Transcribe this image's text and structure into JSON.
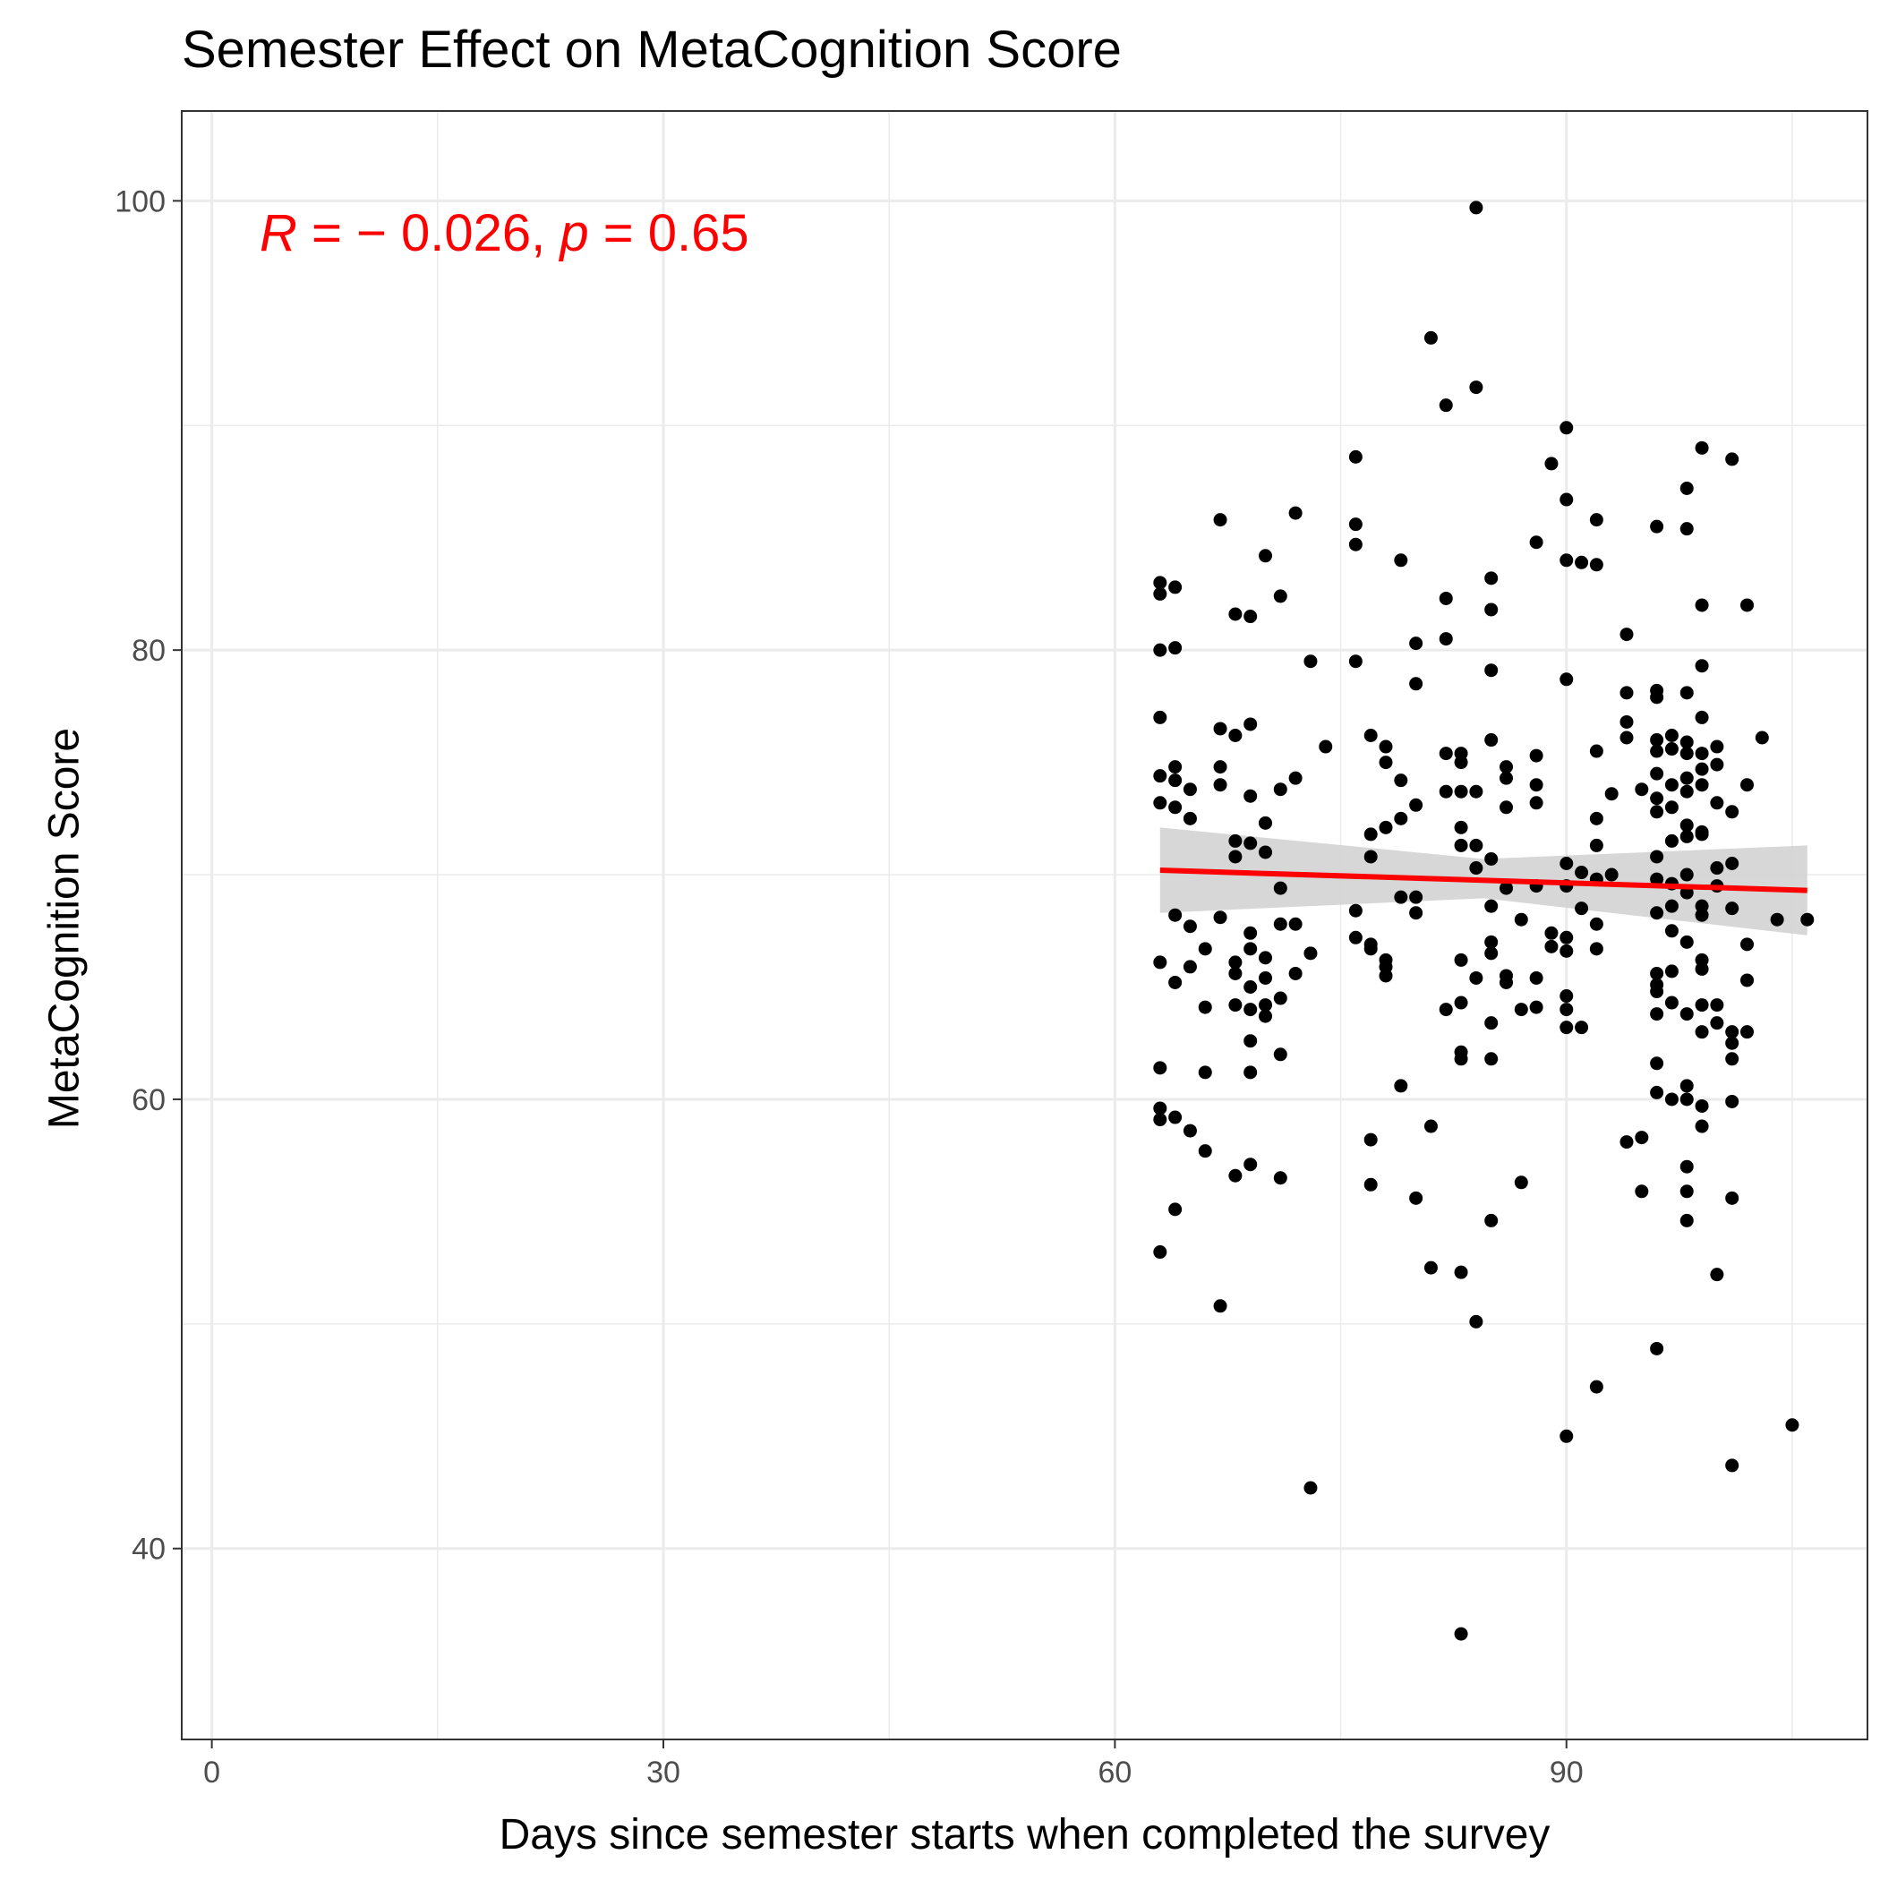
{
  "chart_data": {
    "type": "scatter",
    "title": "Semester Effect on MetaCognition Score",
    "xlabel": "Days since semester starts when completed the survey",
    "ylabel": "MetaCognition Score",
    "xlim": [
      -2,
      110
    ],
    "ylim": [
      31.5,
      104
    ],
    "x_ticks": [
      0,
      30,
      60,
      90
    ],
    "y_ticks": [
      40,
      60,
      80,
      100
    ],
    "x_tick_labels": [
      "0",
      "30",
      "60",
      "90"
    ],
    "y_tick_labels": [
      "40",
      "60",
      "80",
      "100"
    ],
    "grid": true,
    "annotation": {
      "r_symbol": "R",
      "r_text": " = − 0.026, ",
      "p_symbol": "p",
      "p_text": " = 0.65",
      "color": "#ff0000"
    },
    "regression": {
      "x": [
        63,
        106
      ],
      "y": [
        70.2,
        69.3
      ],
      "ci_upper": [
        72.1,
        71.3
      ],
      "ci_mid_upper": [
        70.6,
        70.8
      ],
      "ci_mid_lower": [
        69.1,
        68.8
      ],
      "ci_lower": [
        68.3,
        67.3
      ],
      "color": "#ff0000",
      "band_color": "#d3d3d3"
    },
    "points": [
      [
        63,
        83
      ],
      [
        63,
        82.5
      ],
      [
        64,
        82.8
      ],
      [
        63,
        80
      ],
      [
        64,
        80.1
      ],
      [
        63,
        77
      ],
      [
        63,
        74.4
      ],
      [
        64,
        74.8
      ],
      [
        64,
        74.2
      ],
      [
        65,
        73.8
      ],
      [
        63,
        73.2
      ],
      [
        64,
        73
      ],
      [
        65,
        72.5
      ],
      [
        64,
        68.2
      ],
      [
        65,
        67.7
      ],
      [
        63,
        66.1
      ],
      [
        65,
        65.9
      ],
      [
        66,
        66.7
      ],
      [
        64,
        65.2
      ],
      [
        66,
        64.1
      ],
      [
        63,
        61.4
      ],
      [
        66,
        61.2
      ],
      [
        63,
        59.6
      ],
      [
        63,
        59.1
      ],
      [
        64,
        59.2
      ],
      [
        65,
        58.6
      ],
      [
        66,
        57.7
      ],
      [
        64,
        55.1
      ],
      [
        63,
        53.2
      ],
      [
        67,
        85.8
      ],
      [
        68,
        81.6
      ],
      [
        69,
        81.5
      ],
      [
        67,
        76.5
      ],
      [
        68,
        76.2
      ],
      [
        69,
        76.7
      ],
      [
        67,
        74.8
      ],
      [
        67,
        74
      ],
      [
        69,
        73.5
      ],
      [
        68,
        71.5
      ],
      [
        69,
        71.4
      ],
      [
        68,
        70.8
      ],
      [
        70,
        71
      ],
      [
        70,
        72.3
      ],
      [
        67,
        68.1
      ],
      [
        69,
        67.4
      ],
      [
        69,
        66.7
      ],
      [
        68,
        66.1
      ],
      [
        68,
        65.6
      ],
      [
        70,
        66.3
      ],
      [
        69,
        65
      ],
      [
        70,
        65.4
      ],
      [
        68,
        64.2
      ],
      [
        70,
        64.2
      ],
      [
        69,
        64
      ],
      [
        70,
        63.7
      ],
      [
        69,
        62.6
      ],
      [
        69,
        61.2
      ],
      [
        69,
        57.1
      ],
      [
        68,
        56.6
      ],
      [
        67,
        50.8
      ],
      [
        70,
        84.2
      ],
      [
        71,
        82.4
      ],
      [
        72,
        86.1
      ],
      [
        71,
        73.8
      ],
      [
        72,
        74.3
      ],
      [
        71,
        69.4
      ],
      [
        71,
        67.8
      ],
      [
        72,
        67.8
      ],
      [
        73,
        66.5
      ],
      [
        72,
        65.6
      ],
      [
        71,
        64.5
      ],
      [
        71,
        62
      ],
      [
        71,
        56.5
      ],
      [
        74,
        75.7
      ],
      [
        73,
        79.5
      ],
      [
        73,
        42.7
      ],
      [
        76,
        88.6
      ],
      [
        76,
        85.6
      ],
      [
        76,
        84.7
      ],
      [
        76,
        79.5
      ],
      [
        77,
        76.2
      ],
      [
        78,
        75.7
      ],
      [
        78,
        75
      ],
      [
        77,
        71.8
      ],
      [
        78,
        72.1
      ],
      [
        79,
        72.5
      ],
      [
        79,
        74.2
      ],
      [
        80,
        73.1
      ],
      [
        77,
        70.8
      ],
      [
        76,
        68.4
      ],
      [
        79,
        69
      ],
      [
        80,
        69
      ],
      [
        80,
        68.3
      ],
      [
        77,
        66.9
      ],
      [
        77,
        66.7
      ],
      [
        78,
        66.2
      ],
      [
        78,
        65.9
      ],
      [
        78,
        65.5
      ],
      [
        76,
        67.2
      ],
      [
        79,
        60.6
      ],
      [
        77,
        58.2
      ],
      [
        77,
        56.2
      ],
      [
        80,
        55.6
      ],
      [
        79,
        84
      ],
      [
        80,
        80.3
      ],
      [
        80,
        78.5
      ],
      [
        81,
        93.9
      ],
      [
        82,
        90.9
      ],
      [
        82,
        82.3
      ],
      [
        82,
        80.5
      ],
      [
        82,
        75.4
      ],
      [
        83,
        75.4
      ],
      [
        83,
        75
      ],
      [
        82,
        73.7
      ],
      [
        83,
        73.7
      ],
      [
        84,
        73.7
      ],
      [
        83,
        72.1
      ],
      [
        83,
        71.3
      ],
      [
        84,
        71.3
      ],
      [
        84,
        70.3
      ],
      [
        83,
        66.2
      ],
      [
        84,
        65.4
      ],
      [
        83,
        64.3
      ],
      [
        82,
        64
      ],
      [
        83,
        62.1
      ],
      [
        83,
        61.8
      ],
      [
        81,
        58.8
      ],
      [
        81,
        52.5
      ],
      [
        83,
        52.3
      ],
      [
        84,
        50.1
      ],
      [
        83,
        36.2
      ],
      [
        84,
        99.7
      ],
      [
        84,
        91.7
      ],
      [
        85,
        83.2
      ],
      [
        85,
        81.8
      ],
      [
        85,
        79.1
      ],
      [
        85,
        76
      ],
      [
        86,
        74.8
      ],
      [
        86,
        74.3
      ],
      [
        86,
        73
      ],
      [
        85,
        70.7
      ],
      [
        86,
        69.4
      ],
      [
        85,
        68.6
      ],
      [
        87,
        68
      ],
      [
        85,
        67
      ],
      [
        85,
        66.5
      ],
      [
        86,
        65.5
      ],
      [
        86,
        65.2
      ],
      [
        87,
        64
      ],
      [
        85,
        63.4
      ],
      [
        85,
        61.8
      ],
      [
        87,
        56.3
      ],
      [
        85,
        54.6
      ],
      [
        88,
        84.8
      ],
      [
        88,
        75.3
      ],
      [
        88,
        74
      ],
      [
        88,
        73.2
      ],
      [
        88,
        69.5
      ],
      [
        89,
        67.4
      ],
      [
        88,
        65.4
      ],
      [
        88,
        64.1
      ],
      [
        89,
        88.3
      ],
      [
        90,
        89.9
      ],
      [
        90,
        86.7
      ],
      [
        90,
        84
      ],
      [
        91,
        83.9
      ],
      [
        92,
        83.8
      ],
      [
        90,
        78.7
      ],
      [
        92,
        85.8
      ],
      [
        90,
        70.5
      ],
      [
        91,
        70.1
      ],
      [
        92,
        69.8
      ],
      [
        90,
        69.5
      ],
      [
        91,
        68.5
      ],
      [
        92,
        67.8
      ],
      [
        90,
        67.2
      ],
      [
        89,
        66.8
      ],
      [
        90,
        66.6
      ],
      [
        92,
        66.7
      ],
      [
        90,
        64.6
      ],
      [
        90,
        64
      ],
      [
        90,
        63.2
      ],
      [
        91,
        63.2
      ],
      [
        90,
        45
      ],
      [
        92,
        47.2
      ],
      [
        92,
        75.5
      ],
      [
        92,
        72.5
      ],
      [
        92,
        71.3
      ],
      [
        93,
        73.6
      ],
      [
        93,
        70
      ],
      [
        94,
        80.7
      ],
      [
        94,
        78.1
      ],
      [
        94,
        76.8
      ],
      [
        94,
        76.1
      ],
      [
        95,
        73.8
      ],
      [
        94,
        58.1
      ],
      [
        95,
        58.3
      ],
      [
        95,
        55.9
      ],
      [
        96,
        85.5
      ],
      [
        96,
        78.2
      ],
      [
        96,
        77.9
      ],
      [
        96,
        76
      ],
      [
        96,
        75.5
      ],
      [
        97,
        76.2
      ],
      [
        97,
        75.6
      ],
      [
        96,
        74.5
      ],
      [
        96,
        73.4
      ],
      [
        96,
        72.8
      ],
      [
        97,
        74
      ],
      [
        97,
        73
      ],
      [
        97,
        71.5
      ],
      [
        96,
        70.8
      ],
      [
        96,
        69.8
      ],
      [
        97,
        69.6
      ],
      [
        96,
        68.3
      ],
      [
        97,
        68.6
      ],
      [
        97,
        67.5
      ],
      [
        96,
        65.6
      ],
      [
        96,
        65.1
      ],
      [
        97,
        65.7
      ],
      [
        96,
        64.8
      ],
      [
        97,
        64.3
      ],
      [
        96,
        63.8
      ],
      [
        96,
        61.6
      ],
      [
        96,
        60.3
      ],
      [
        97,
        60
      ],
      [
        96,
        48.9
      ],
      [
        98,
        87.2
      ],
      [
        98,
        85.4
      ],
      [
        98,
        78.1
      ],
      [
        98,
        75.9
      ],
      [
        98,
        75.4
      ],
      [
        98,
        74.3
      ],
      [
        98,
        73.7
      ],
      [
        99,
        74
      ],
      [
        98,
        72.2
      ],
      [
        99,
        71.9
      ],
      [
        98,
        71.7
      ],
      [
        98,
        70
      ],
      [
        98,
        69.2
      ],
      [
        99,
        68.6
      ],
      [
        99,
        68.2
      ],
      [
        98,
        67
      ],
      [
        99,
        66.2
      ],
      [
        99,
        65.8
      ],
      [
        98,
        63.8
      ],
      [
        99,
        64.2
      ],
      [
        100,
        64.2
      ],
      [
        99,
        63
      ],
      [
        100,
        63.4
      ],
      [
        98,
        60.6
      ],
      [
        98,
        60
      ],
      [
        99,
        59.7
      ],
      [
        99,
        58.8
      ],
      [
        98,
        57
      ],
      [
        98,
        55.9
      ],
      [
        98,
        54.6
      ],
      [
        99,
        89
      ],
      [
        99,
        82
      ],
      [
        99,
        79.3
      ],
      [
        99,
        77
      ],
      [
        99,
        75.4
      ],
      [
        100,
        75.7
      ],
      [
        100,
        74.9
      ],
      [
        99,
        74.7
      ],
      [
        100,
        73.2
      ],
      [
        99,
        71.8
      ],
      [
        100,
        70.3
      ],
      [
        100,
        69.5
      ],
      [
        101,
        72.8
      ],
      [
        101,
        70.5
      ],
      [
        101,
        68.5
      ],
      [
        101,
        63
      ],
      [
        101,
        62.5
      ],
      [
        101,
        61.8
      ],
      [
        101,
        59.9
      ],
      [
        101,
        55.6
      ],
      [
        100,
        52.2
      ],
      [
        101,
        43.7
      ],
      [
        101,
        88.5
      ],
      [
        102,
        82
      ],
      [
        102,
        74
      ],
      [
        103,
        76.1
      ],
      [
        102,
        66.9
      ],
      [
        102,
        65.3
      ],
      [
        102,
        63
      ],
      [
        104,
        68
      ],
      [
        106,
        68
      ],
      [
        105,
        45.5
      ]
    ]
  }
}
